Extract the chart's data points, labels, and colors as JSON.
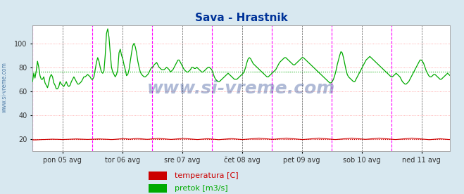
{
  "title": "Sava - Hrastnik",
  "title_color": "#003399",
  "bg_color": "#d8e8f0",
  "plot_bg_color": "#ffffff",
  "fig_bg_color": "#d8e8f0",
  "ylabel_left": "",
  "ylim": [
    10,
    115
  ],
  "yticks": [
    20,
    40,
    60,
    80,
    100
  ],
  "xlim": [
    0,
    335
  ],
  "x_day_labels": [
    "pon 05 avg",
    "tor 06 avg",
    "sre 07 avg",
    "čet 08 avg",
    "pet 09 avg",
    "sob 10 avg",
    "ned 11 avg"
  ],
  "x_day_positions": [
    24,
    72,
    120,
    168,
    216,
    264,
    312
  ],
  "x_magenta_lines": [
    0,
    48,
    96,
    144,
    192,
    240,
    288,
    336
  ],
  "x_black_dashed": [
    24,
    72,
    120,
    168,
    216,
    264,
    312
  ],
  "avg_pretok": 76.5,
  "avg_temp": 20.0,
  "watermark": "www.si-vreme.com",
  "watermark_color": "#1a3a8a",
  "watermark_alpha": 0.35,
  "legend_temp_color": "#cc0000",
  "legend_pretok_color": "#00aa00",
  "legend_temp_label": "temperatura [C]",
  "legend_pretok_label": "pretok [m3/s]",
  "side_label": "www.si-vreme.com",
  "side_label_color": "#336699",
  "pretok": [
    68,
    75,
    71,
    77,
    85,
    80,
    73,
    70,
    70,
    72,
    67,
    65,
    63,
    67,
    72,
    74,
    72,
    67,
    65,
    62,
    62,
    64,
    68,
    66,
    65,
    64,
    66,
    68,
    65,
    64,
    65,
    68,
    70,
    72,
    70,
    68,
    66,
    66,
    67,
    68,
    70,
    72,
    72,
    73,
    74,
    73,
    72,
    70,
    70,
    72,
    78,
    84,
    88,
    85,
    80,
    76,
    75,
    77,
    90,
    108,
    112,
    105,
    92,
    80,
    76,
    74,
    72,
    74,
    78,
    92,
    95,
    90,
    87,
    82,
    78,
    73,
    74,
    78,
    85,
    92,
    98,
    100,
    97,
    92,
    85,
    80,
    76,
    74,
    73,
    72,
    72,
    73,
    74,
    76,
    78,
    80,
    80,
    82,
    83,
    84,
    82,
    80,
    79,
    78,
    78,
    78,
    79,
    80,
    79,
    78,
    76,
    77,
    78,
    80,
    82,
    84,
    86,
    86,
    84,
    82,
    80,
    78,
    77,
    76,
    76,
    77,
    78,
    80,
    80,
    79,
    79,
    80,
    79,
    78,
    77,
    76,
    76,
    77,
    78,
    79,
    80,
    80,
    79,
    78,
    75,
    72,
    70,
    69,
    68,
    68,
    69,
    70,
    71,
    72,
    73,
    74,
    75,
    74,
    73,
    72,
    71,
    70,
    70,
    70,
    71,
    72,
    73,
    74,
    75,
    77,
    80,
    84,
    87,
    88,
    87,
    85,
    83,
    82,
    81,
    80,
    79,
    78,
    77,
    76,
    75,
    74,
    73,
    72,
    72,
    73,
    74,
    75,
    76,
    77,
    78,
    80,
    82,
    84,
    85,
    86,
    87,
    88,
    88,
    87,
    86,
    85,
    84,
    83,
    82,
    82,
    83,
    84,
    85,
    86,
    87,
    88,
    88,
    87,
    86,
    85,
    84,
    83,
    82,
    81,
    80,
    79,
    78,
    77,
    76,
    75,
    74,
    73,
    72,
    71,
    70,
    69,
    68,
    67,
    67,
    68,
    70,
    73,
    77,
    82,
    86,
    90,
    93,
    92,
    88,
    83,
    78,
    74,
    72,
    71,
    70,
    69,
    68,
    68,
    70,
    72,
    74,
    76,
    78,
    80,
    82,
    84,
    86,
    87,
    88,
    89,
    88,
    87,
    86,
    85,
    84,
    83,
    82,
    81,
    80,
    79,
    78,
    77,
    76,
    75,
    74,
    73,
    72,
    72,
    73,
    74,
    75,
    74,
    73,
    72,
    70,
    68,
    67,
    66,
    66,
    67,
    68,
    70,
    72,
    74,
    76,
    78,
    80,
    82,
    84,
    86,
    86,
    85,
    83,
    80,
    77,
    75,
    73,
    72,
    72,
    73,
    74,
    74,
    73,
    72,
    71,
    70,
    70,
    71,
    72,
    73,
    74,
    75,
    74,
    73
  ],
  "temperatura": [
    19.5,
    19.5,
    19.5,
    19.5,
    19.6,
    19.6,
    19.7,
    19.7,
    19.8,
    19.8,
    19.8,
    19.9,
    19.9,
    20.0,
    20.0,
    20.1,
    20.1,
    20.1,
    20.0,
    20.0,
    20.0,
    19.9,
    19.9,
    19.8,
    19.8,
    19.8,
    19.9,
    19.9,
    20.0,
    20.0,
    20.1,
    20.1,
    20.2,
    20.2,
    20.3,
    20.3,
    20.3,
    20.2,
    20.2,
    20.1,
    20.1,
    20.0,
    20.0,
    19.9,
    19.9,
    19.9,
    20.0,
    20.0,
    20.1,
    20.1,
    20.2,
    20.2,
    20.3,
    20.3,
    20.3,
    20.2,
    20.2,
    20.1,
    20.1,
    20.0,
    20.0,
    19.9,
    19.8,
    19.8,
    19.8,
    19.9,
    20.0,
    20.1,
    20.2,
    20.3,
    20.4,
    20.5,
    20.6,
    20.6,
    20.5,
    20.4,
    20.3,
    20.2,
    20.2,
    20.3,
    20.4,
    20.5,
    20.6,
    20.7,
    20.7,
    20.6,
    20.5,
    20.4,
    20.3,
    20.2,
    20.1,
    20.0,
    20.0,
    20.1,
    20.2,
    20.3,
    20.4,
    20.5,
    20.6,
    20.7,
    20.8,
    20.8,
    20.7,
    20.6,
    20.5,
    20.4,
    20.3,
    20.2,
    20.1,
    20.0,
    19.9,
    19.9,
    20.0,
    20.1,
    20.2,
    20.3,
    20.4,
    20.5,
    20.6,
    20.7,
    20.8,
    20.8,
    20.7,
    20.6,
    20.5,
    20.4,
    20.3,
    20.2,
    20.1,
    20.0,
    19.9,
    19.8,
    19.8,
    19.9,
    20.0,
    20.1,
    20.2,
    20.3,
    20.4,
    20.5,
    20.5,
    20.4,
    20.3,
    20.2,
    20.1,
    20.0,
    19.9,
    19.8,
    19.7,
    19.7,
    19.8,
    19.9,
    20.0,
    20.1,
    20.2,
    20.3,
    20.4,
    20.5,
    20.6,
    20.6,
    20.5,
    20.4,
    20.3,
    20.2,
    20.1,
    20.0,
    19.9,
    19.8,
    19.8,
    19.9,
    20.0,
    20.1,
    20.2,
    20.3,
    20.4,
    20.5,
    20.6,
    20.7,
    20.8,
    20.9,
    21.0,
    21.0,
    20.9,
    20.8,
    20.7,
    20.6,
    20.5,
    20.4,
    20.3,
    20.2,
    20.1,
    20.0,
    20.0,
    20.1,
    20.2,
    20.3,
    20.4,
    20.5,
    20.6,
    20.7,
    20.8,
    20.9,
    21.0,
    21.0,
    20.9,
    20.8,
    20.7,
    20.6,
    20.5,
    20.4,
    20.3,
    20.2,
    20.1,
    20.0,
    19.9,
    19.8,
    19.8,
    19.9,
    20.0,
    20.1,
    20.2,
    20.3,
    20.4,
    20.5,
    20.6,
    20.7,
    20.8,
    20.9,
    21.0,
    21.0,
    20.9,
    20.8,
    20.7,
    20.6,
    20.5,
    20.4,
    20.3,
    20.2,
    20.1,
    20.0,
    19.9,
    19.8,
    19.8,
    19.9,
    20.0,
    20.1,
    20.2,
    20.3,
    20.4,
    20.5,
    20.6,
    20.7,
    20.8,
    20.9,
    21.0,
    21.0,
    20.9,
    20.8,
    20.7,
    20.6,
    20.5,
    20.4,
    20.3,
    20.2,
    20.1,
    20.0,
    20.0,
    20.1,
    20.2,
    20.3,
    20.4,
    20.5,
    20.6,
    20.7,
    20.8,
    20.9,
    21.0,
    21.0,
    20.9,
    20.8,
    20.7,
    20.6,
    20.5,
    20.4,
    20.3,
    20.2,
    20.1,
    20.0,
    19.9,
    19.8,
    19.8,
    19.9,
    20.0,
    20.1,
    20.2,
    20.3,
    20.4,
    20.5,
    20.6,
    20.7,
    20.8,
    20.9,
    21.0,
    21.0,
    20.9,
    20.8,
    20.7,
    20.6,
    20.5,
    20.4,
    20.3,
    20.2,
    20.1,
    20.0,
    19.9,
    19.8,
    19.7,
    19.7,
    19.8,
    19.9,
    20.0,
    20.1,
    20.2,
    20.3,
    20.4,
    20.5,
    20.4,
    20.3,
    20.2,
    20.1,
    20.0,
    19.9,
    19.8,
    19.8
  ]
}
